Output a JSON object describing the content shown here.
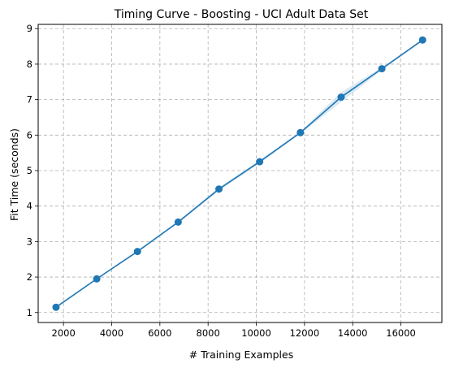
{
  "chart_data": {
    "type": "line",
    "title": "Timing Curve - Boosting - UCI Adult Data Set",
    "xlabel": "# Training Examples",
    "ylabel": "Fit Time (seconds)",
    "xlim": [
      950,
      17700
    ],
    "ylim": [
      0.72,
      9.12
    ],
    "xticks": [
      2000,
      4000,
      6000,
      8000,
      10000,
      12000,
      14000,
      16000
    ],
    "yticks": [
      1,
      2,
      3,
      4,
      5,
      6,
      7,
      8,
      9
    ],
    "grid": true,
    "series": [
      {
        "color": "#1f77b4",
        "band_color": "#cfe3f3",
        "x": [
          1690,
          3380,
          5070,
          6760,
          8450,
          10140,
          11830,
          13520,
          15210,
          16900
        ],
        "y": [
          1.15,
          1.95,
          2.72,
          3.55,
          4.48,
          5.25,
          6.07,
          7.07,
          7.87,
          8.68
        ],
        "band": [
          0.02,
          0.02,
          0.03,
          0.03,
          0.05,
          0.04,
          0.03,
          0.14,
          0.04,
          0.03
        ]
      }
    ]
  }
}
